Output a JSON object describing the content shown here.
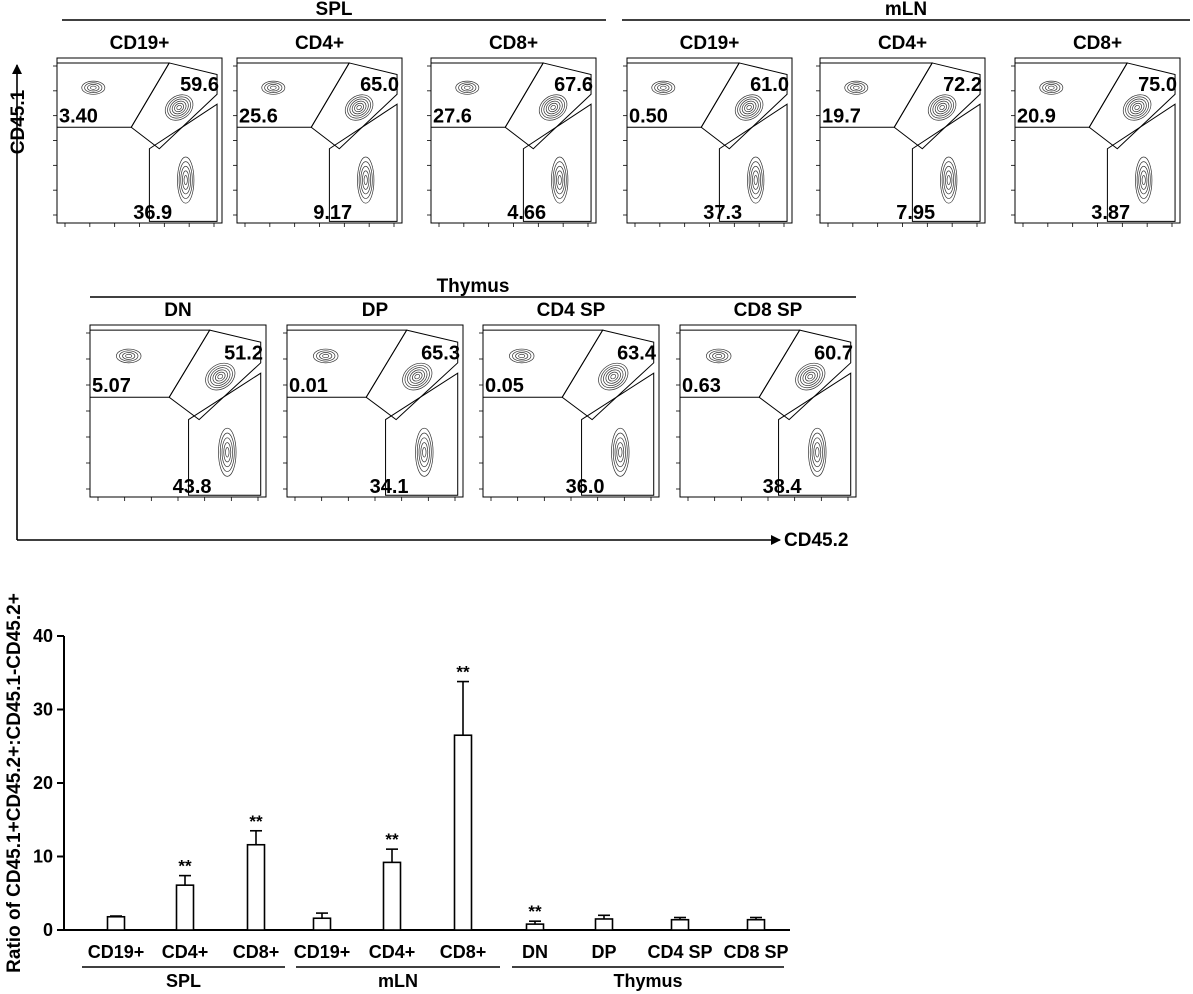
{
  "flow": {
    "x_axis_label": "CD45.2",
    "y_axis_label": "CD45.1",
    "groups": [
      {
        "label": "SPL",
        "panels": [
          {
            "label": "CD19+",
            "upper_left": "3.40",
            "upper_right": "59.6",
            "lower": "36.9"
          },
          {
            "label": "CD4+",
            "upper_left": "25.6",
            "upper_right": "65.0",
            "lower": "9.17"
          },
          {
            "label": "CD8+",
            "upper_left": "27.6",
            "upper_right": "67.6",
            "lower": "4.66"
          }
        ]
      },
      {
        "label": "mLN",
        "panels": [
          {
            "label": "CD19+",
            "upper_left": "0.50",
            "upper_right": "61.0",
            "lower": "37.3"
          },
          {
            "label": "CD4+",
            "upper_left": "19.7",
            "upper_right": "72.2",
            "lower": "7.95"
          },
          {
            "label": "CD8+",
            "upper_left": "20.9",
            "upper_right": "75.0",
            "lower": "3.87"
          }
        ]
      },
      {
        "label": "Thymus",
        "panels": [
          {
            "label": "DN",
            "upper_left": "5.07",
            "upper_right": "51.2",
            "lower": "43.8"
          },
          {
            "label": "DP",
            "upper_left": "0.01",
            "upper_right": "65.3",
            "lower": "34.1"
          },
          {
            "label": "CD4 SP",
            "upper_left": "0.05",
            "upper_right": "63.4",
            "lower": "36.0"
          },
          {
            "label": "CD8 SP",
            "upper_left": "0.63",
            "upper_right": "60.7",
            "lower": "38.4"
          }
        ]
      }
    ]
  },
  "chart_data": {
    "type": "bar",
    "ylabel": "Ratio of CD45.1+CD45.2+:CD45.1-CD45.2+",
    "ylim": [
      0,
      40
    ],
    "yticks": [
      0,
      10,
      20,
      30,
      40
    ],
    "categories": [
      "CD19+",
      "CD4+",
      "CD8+",
      "CD19+",
      "CD4+",
      "CD8+",
      "DN",
      "DP",
      "CD4 SP",
      "CD8 SP"
    ],
    "groups": [
      "SPL",
      "SPL",
      "SPL",
      "mLN",
      "mLN",
      "mLN",
      "Thymus",
      "Thymus",
      "Thymus",
      "Thymus"
    ],
    "group_labels": [
      "SPL",
      "mLN",
      "Thymus"
    ],
    "values": [
      1.8,
      6.1,
      11.6,
      1.6,
      9.2,
      26.5,
      0.8,
      1.5,
      1.4,
      1.4
    ],
    "errors": [
      0.1,
      1.3,
      1.9,
      0.7,
      1.8,
      7.3,
      0.4,
      0.5,
      0.3,
      0.3
    ],
    "significance": [
      "",
      "**",
      "**",
      "",
      "**",
      "**",
      "**",
      "",
      "",
      ""
    ]
  }
}
